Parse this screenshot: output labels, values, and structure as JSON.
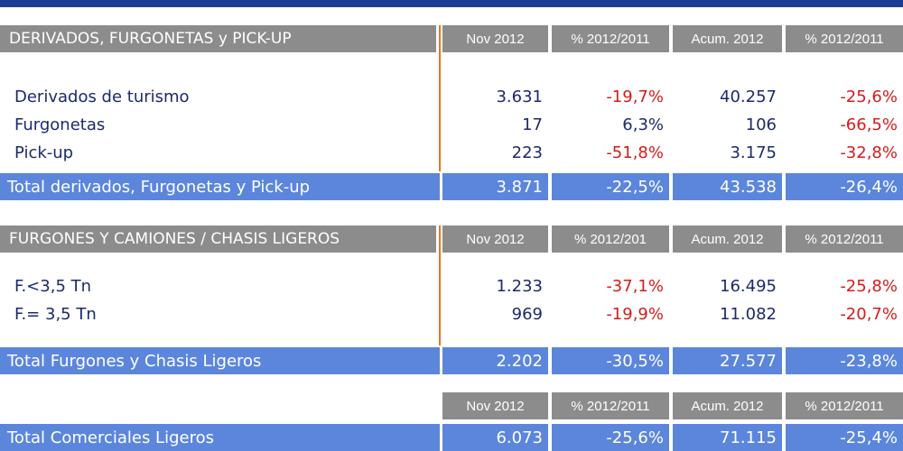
{
  "sections": [
    {
      "title": "DERIVADOS, FURGONETAS y PICK-UP",
      "headers": [
        "Nov 2012",
        "% 2012/2011",
        "Acum. 2012",
        "% 2012/2011"
      ],
      "rows": [
        [
          "Derivados de turismo",
          "3.631",
          "-19,7%",
          "40.257",
          "-25,6%"
        ],
        [
          "Furgonetas",
          "17",
          "6,3%",
          "106",
          "-66,5%"
        ],
        [
          "Pick-up",
          "223",
          "-51,8%",
          "3.175",
          "-32,8%"
        ]
      ],
      "total": [
        "Total derivados, Furgonetas y Pick-up",
        "3.871",
        "-22,5%",
        "43.538",
        "-26,4%"
      ]
    },
    {
      "title": "FURGONES Y CAMIONES / CHASIS LIGEROS",
      "headers": [
        "Nov 2012",
        "% 2012/201",
        "Acum. 2012",
        "% 2012/2011"
      ],
      "rows": [
        [
          "F.<3,5 Tn",
          "1.233",
          "-37,1%",
          "16.495",
          "-25,8%"
        ],
        [
          "F.= 3,5 Tn",
          "969",
          "-19,9%",
          "11.082",
          "-20,7%"
        ]
      ],
      "total": [
        "Total Furgones y Chasis Ligeros",
        "2.202",
        "-30,5%",
        "27.577",
        "-23,8%"
      ]
    },
    {
      "headers": [
        "Nov 2012",
        "% 2012/2011",
        "Acum. 2012",
        "% 2012/2011"
      ],
      "total": [
        "Total Comerciales Ligeros",
        "6.073",
        "-25,6%",
        "71.115",
        "-25,4%"
      ]
    }
  ]
}
